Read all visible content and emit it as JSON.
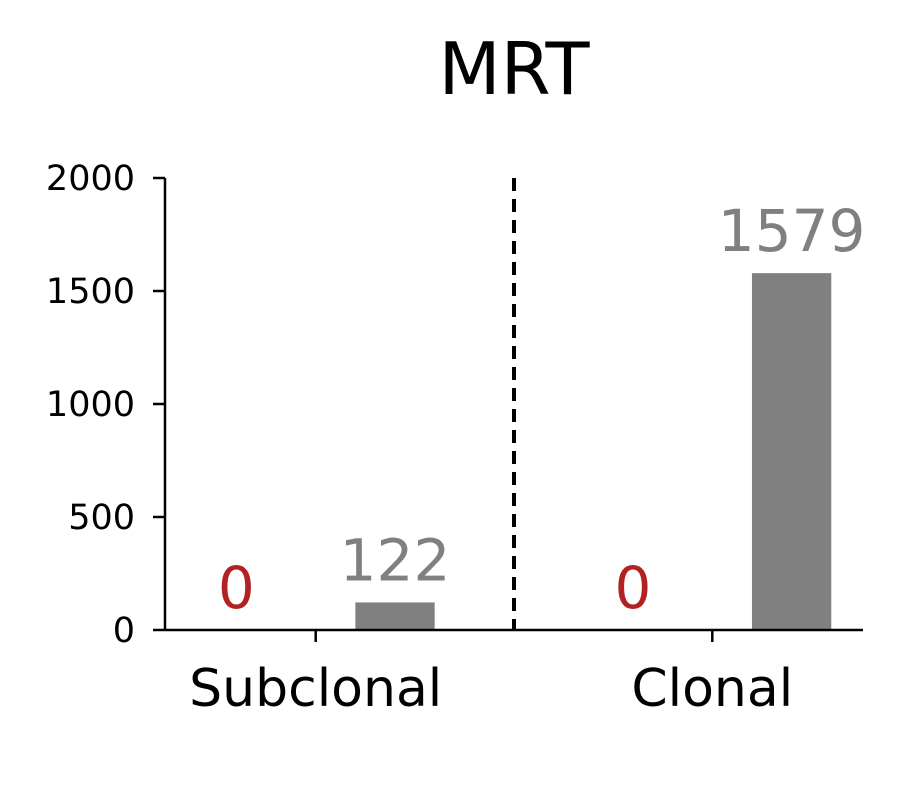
{
  "chart_data": {
    "type": "bar",
    "title": "MRT",
    "xlabel": "",
    "ylabel": "",
    "categories": [
      "Subclonal",
      "Clonal"
    ],
    "series": [
      {
        "color": "#b22222",
        "values": [
          0,
          0
        ]
      },
      {
        "color": "#808080",
        "values": [
          122,
          1579
        ]
      }
    ],
    "ylim": [
      0,
      2000
    ],
    "yticks": [
      0,
      500,
      1000,
      1500,
      2000
    ],
    "ytick_labels": [
      "0",
      "500",
      "1000",
      "1500",
      "2000"
    ],
    "divider": {
      "style": "dashed",
      "between": [
        "Subclonal",
        "Clonal"
      ]
    },
    "grid": false,
    "legend": "none"
  }
}
